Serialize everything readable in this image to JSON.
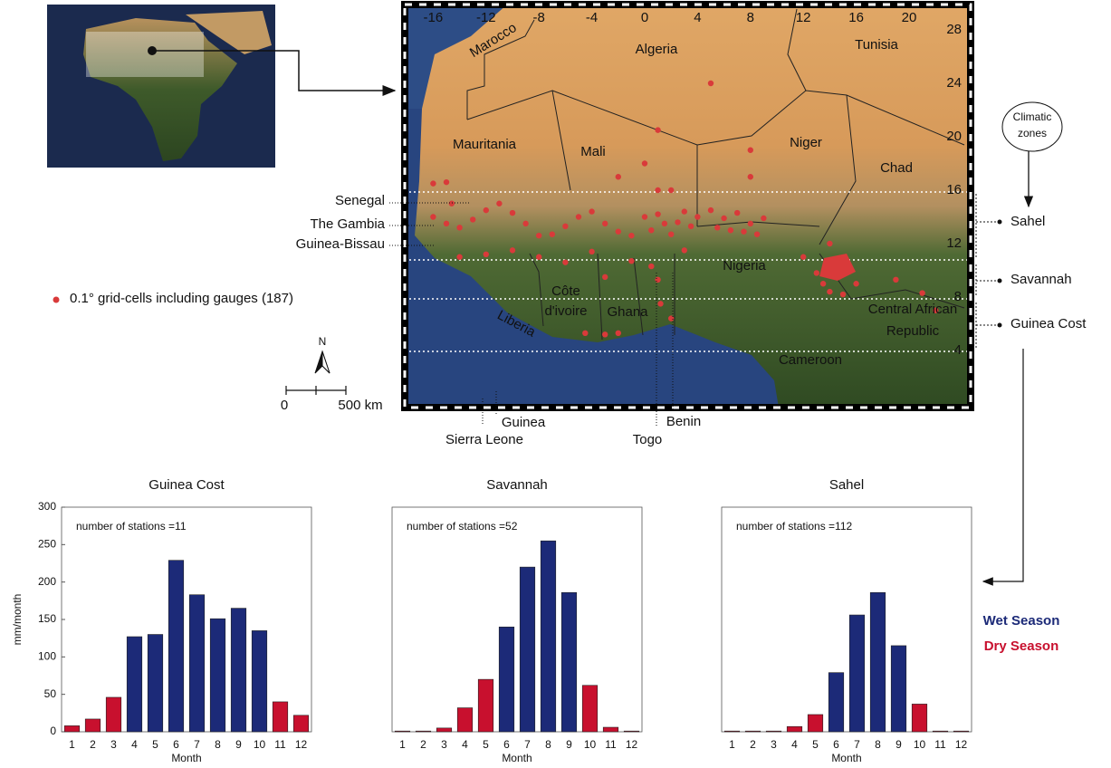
{
  "map": {
    "countries": [
      "Marocco",
      "Algeria",
      "Tunisia",
      "Mauritania",
      "Mali",
      "Niger",
      "Chad",
      "Nigeria",
      [
        "Côte",
        "d'ivoire"
      ],
      "Ghana",
      "Liberia",
      "Cameroon",
      [
        "Central African",
        "Republic"
      ]
    ],
    "outside_labels": [
      "Senegal",
      "The Gambia",
      "Guinea-Bissau",
      "Sierra Leone",
      "Guinea",
      "Togo",
      "Benin"
    ],
    "lon_ticks": [
      -16,
      -12,
      -8,
      -4,
      0,
      4,
      8,
      12,
      16,
      20
    ],
    "lat_ticks": [
      28,
      24,
      20,
      16,
      12,
      8,
      4
    ],
    "gauge_legend": "0.1° grid-cells including gauges (187)",
    "scale": [
      "0",
      "500 km"
    ],
    "north": "N",
    "zones_title": [
      "Climatic",
      "zones"
    ],
    "zones": [
      "Sahel",
      "Savannah",
      "Guinea Cost"
    ]
  },
  "chart_data": [
    {
      "type": "bar",
      "title": "Guinea Cost",
      "annotation": "number of stations =11",
      "y_label": "mm/month",
      "x_label": "Month",
      "categories": [
        "1",
        "2",
        "3",
        "4",
        "5",
        "6",
        "7",
        "8",
        "9",
        "10",
        "11",
        "12"
      ],
      "series": [
        {
          "name": "Wet Season",
          "color": "#1c2a78",
          "values": [
            null,
            null,
            null,
            127,
            130,
            229,
            183,
            151,
            165,
            135,
            null,
            null
          ]
        },
        {
          "name": "Dry Season",
          "color": "#c8102e",
          "values": [
            8,
            17,
            46,
            null,
            null,
            null,
            null,
            null,
            null,
            null,
            40,
            22
          ]
        }
      ],
      "ylim": [
        0,
        300
      ],
      "yticks": [
        0,
        50,
        100,
        150,
        200,
        250,
        300
      ]
    },
    {
      "type": "bar",
      "title": "Savannah",
      "annotation": "number of stations =52",
      "x_label": "Month",
      "categories": [
        "1",
        "2",
        "3",
        "4",
        "5",
        "6",
        "7",
        "8",
        "9",
        "10",
        "11",
        "12"
      ],
      "series": [
        {
          "color": "#1c2a78",
          "values": [
            null,
            null,
            null,
            null,
            null,
            140,
            220,
            255,
            186,
            null,
            null,
            null
          ]
        },
        {
          "color": "#c8102e",
          "values": [
            1,
            1,
            5,
            32,
            70,
            null,
            null,
            null,
            null,
            62,
            6,
            1
          ]
        }
      ],
      "ylim": [
        0,
        300
      ]
    },
    {
      "type": "bar",
      "title": "Sahel",
      "annotation": "number of stations =112",
      "x_label": "Month",
      "categories": [
        "1",
        "2",
        "3",
        "4",
        "5",
        "6",
        "7",
        "8",
        "9",
        "10",
        "11",
        "12"
      ],
      "series": [
        {
          "color": "#1c2a78",
          "values": [
            null,
            null,
            null,
            null,
            null,
            79,
            156,
            186,
            115,
            null,
            null,
            null
          ]
        },
        {
          "color": "#c8102e",
          "values": [
            1,
            1,
            1,
            7,
            23,
            null,
            null,
            null,
            null,
            37,
            1,
            1
          ]
        }
      ],
      "ylim": [
        0,
        300
      ]
    }
  ]
}
